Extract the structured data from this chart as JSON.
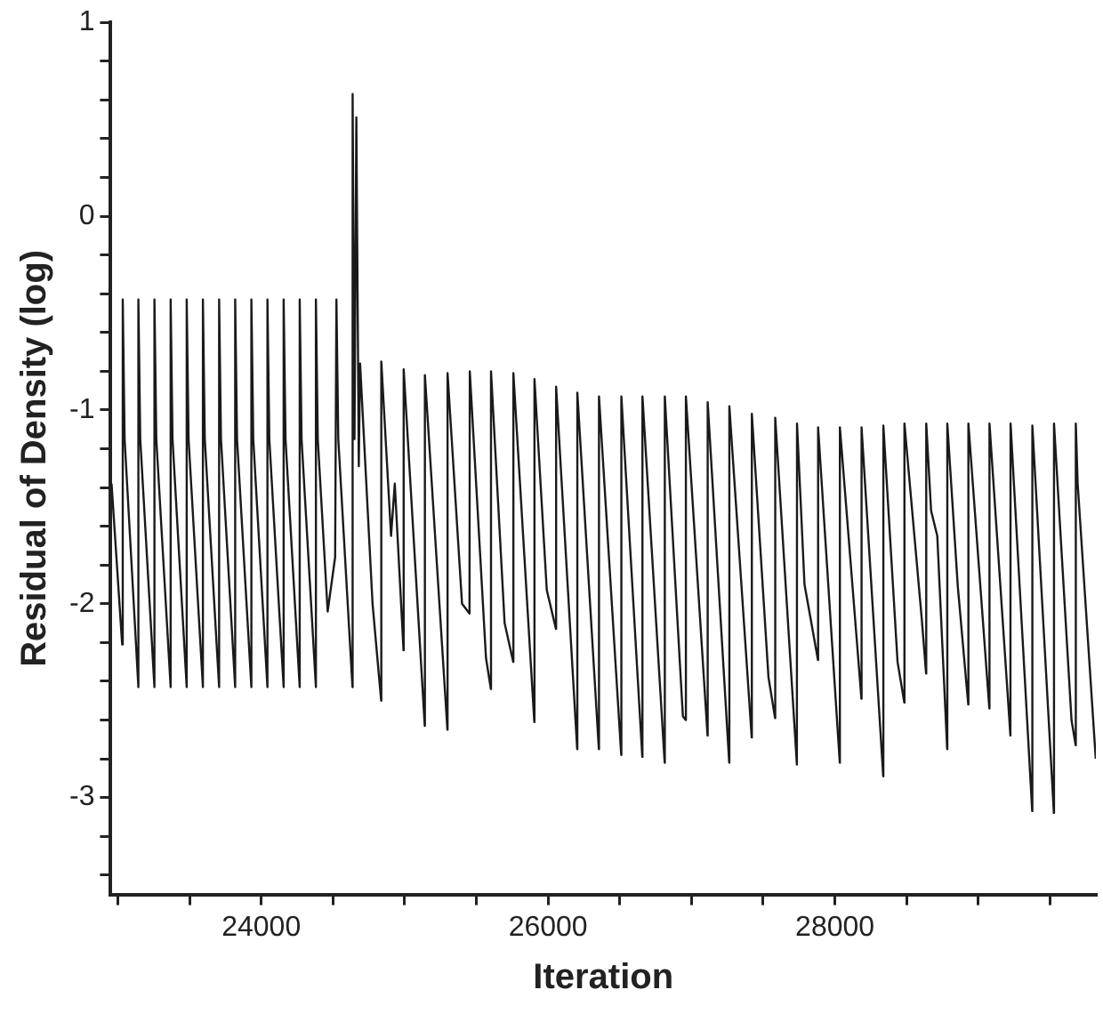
{
  "chart_data": {
    "type": "line",
    "xlabel": "Iteration",
    "ylabel": "Residual of Density (log)",
    "xlim": [
      22950,
      29820
    ],
    "xticks": [
      {
        "value": 23000,
        "label": null
      },
      {
        "value": 23500,
        "label": null
      },
      24000,
      {
        "value": 24500,
        "label": null
      },
      {
        "value": 25000,
        "label": null
      },
      {
        "value": 25500,
        "label": null
      },
      26000,
      {
        "value": 26500,
        "label": null
      },
      {
        "value": 27000,
        "label": null
      },
      {
        "value": 27500,
        "label": null
      },
      28000,
      {
        "value": 28500,
        "label": null
      },
      {
        "value": 29000,
        "label": null
      },
      {
        "value": 29500,
        "label": null
      }
    ],
    "ylim": [
      -3.5,
      1
    ],
    "yticks": [
      {
        "value": -3.4,
        "label": null
      },
      {
        "value": -3.2,
        "label": null
      },
      -3,
      {
        "value": -2.8,
        "label": null
      },
      {
        "value": -2.6,
        "label": null
      },
      {
        "value": -2.4,
        "label": null
      },
      {
        "value": -2.2,
        "label": null
      },
      -2,
      {
        "value": -1.8,
        "label": null
      },
      {
        "value": -1.6,
        "label": null
      },
      {
        "value": -1.4,
        "label": null
      },
      {
        "value": -1.2,
        "label": null
      },
      -1,
      {
        "value": -0.8,
        "label": null
      },
      {
        "value": -0.6,
        "label": null
      },
      {
        "value": -0.4,
        "label": null
      },
      {
        "value": -0.2,
        "label": null
      },
      0,
      {
        "value": 0.2,
        "label": null
      },
      {
        "value": 0.4,
        "label": null
      },
      {
        "value": 0.6,
        "label": null
      },
      {
        "value": 0.8,
        "label": null
      },
      1
    ],
    "marker": "none",
    "line_style": "solid",
    "series": [
      {
        "color": "#1a1a1a",
        "x": [
          22956,
          23030,
          23034,
          23047,
          23143,
          23143,
          23156,
          23255,
          23255,
          23268,
          23368,
          23368,
          23381,
          23480,
          23480,
          23493,
          23593,
          23593,
          23606,
          23706,
          23706,
          23719,
          23818,
          23818,
          23831,
          23931,
          23931,
          23944,
          24043,
          24043,
          24056,
          24156,
          24156,
          24169,
          24268,
          24268,
          24281,
          24381,
          24381,
          24394,
          24463,
          24515,
          24524,
          24537,
          24636,
          24637,
          24650,
          24663,
          24680,
          24689,
          24776,
          24836,
          24837,
          24905,
          24931,
          24992,
          24993,
          25140,
          25141,
          25298,
          25299,
          25400,
          25452,
          25454,
          25567,
          25601,
          25602,
          25697,
          25757,
          25758,
          25904,
          25905,
          25991,
          26055,
          26056,
          26203,
          26204,
          26354,
          26355,
          26510,
          26511,
          26657,
          26658,
          26813,
          26814,
          26940,
          26960,
          26961,
          27112,
          27113,
          27263,
          27264,
          27420,
          27421,
          27537,
          27583,
          27584,
          27735,
          27736,
          27788,
          27882,
          27883,
          28034,
          28035,
          28185,
          28186,
          28337,
          28338,
          28437,
          28484,
          28485,
          28606,
          28636,
          28637,
          28671,
          28714,
          28783,
          28784,
          28857,
          28930,
          28931,
          29077,
          29078,
          29224,
          29225,
          29376,
          29377,
          29527,
          29528,
          29650,
          29679,
          29680,
          29693,
          29819
        ],
        "values": [
          -1.38,
          -2.21,
          -0.43,
          -1.15,
          -2.43,
          -0.43,
          -1.15,
          -2.43,
          -0.43,
          -1.15,
          -2.43,
          -0.43,
          -1.15,
          -2.43,
          -0.43,
          -1.15,
          -2.43,
          -0.43,
          -1.15,
          -2.43,
          -0.43,
          -1.15,
          -2.43,
          -0.43,
          -1.15,
          -2.43,
          -0.43,
          -1.15,
          -2.43,
          -0.43,
          -1.15,
          -2.43,
          -0.43,
          -1.15,
          -2.43,
          -0.43,
          -1.15,
          -2.43,
          -0.43,
          -1.15,
          -2.04,
          -1.76,
          -0.43,
          -1.15,
          -2.43,
          0.63,
          -1.15,
          0.51,
          -1.29,
          -0.76,
          -2.0,
          -2.5,
          -0.75,
          -1.65,
          -1.38,
          -2.24,
          -0.79,
          -2.63,
          -0.82,
          -2.65,
          -0.81,
          -2.0,
          -2.05,
          -0.8,
          -2.28,
          -2.44,
          -0.8,
          -2.1,
          -2.3,
          -0.81,
          -2.61,
          -0.84,
          -1.93,
          -2.13,
          -0.88,
          -2.75,
          -0.91,
          -2.75,
          -0.93,
          -2.78,
          -0.93,
          -2.79,
          -0.93,
          -2.82,
          -0.93,
          -2.58,
          -2.6,
          -0.93,
          -2.68,
          -0.96,
          -2.82,
          -0.98,
          -2.69,
          -1.02,
          -2.38,
          -2.59,
          -1.04,
          -2.83,
          -1.07,
          -1.9,
          -2.29,
          -1.09,
          -2.82,
          -1.09,
          -2.49,
          -1.09,
          -2.89,
          -1.08,
          -2.3,
          -2.51,
          -1.07,
          -2.08,
          -2.36,
          -1.07,
          -1.52,
          -1.65,
          -2.75,
          -1.07,
          -1.91,
          -2.52,
          -1.07,
          -2.54,
          -1.07,
          -2.68,
          -1.07,
          -3.07,
          -1.08,
          -3.08,
          -1.07,
          -2.6,
          -2.73,
          -1.07,
          -1.38,
          -2.8
        ]
      }
    ]
  }
}
